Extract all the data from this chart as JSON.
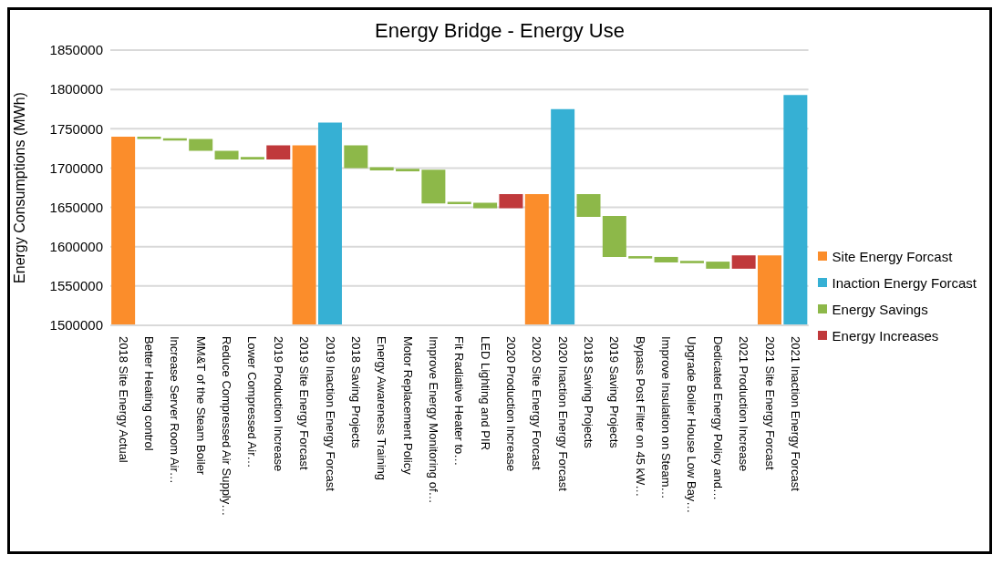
{
  "chart_data": {
    "type": "bar",
    "title": "Energy Bridge - Energy Use",
    "ylabel": "Energy Consumptions (MWh)",
    "categories": [
      "2018 Site Energy  Actual",
      "Better Heating control",
      "Increase Server Room Air…",
      "MM&T of the Steam Boiler",
      "Reduce Compressed Air Supply…",
      "Lower Compressed Air…",
      "2019 Production Increase",
      "2019 Site Energy Forcast",
      "2019 Inaction Energy Forcast",
      "2018 Saving Projects",
      "Energy Awareness Training",
      "Motor Replacement Policy",
      "Improve Energy Monitoring of…",
      "Fit Radiative Heater to…",
      "LED Lighting and PIR",
      "2020 Production Increase",
      "2020 Site Energy Forcast",
      "2020 Inaction Energy Forcast",
      "2018 Saving Projects",
      "2019 Saving Projects",
      "Bypass Post Filter on 45 kW…",
      "Improve Insulation on Steam…",
      "Upgrade Boiler House Low Bay…",
      "Dedicated Energy Policy and…",
      "2021 Production Increase",
      "2021 Site Energy Forcast",
      "2021 Inaction Energy Forcast"
    ],
    "series": [
      {
        "name": "Site Energy Forcast",
        "color": "#fb8d2b",
        "values": [
          1740000,
          null,
          null,
          null,
          null,
          null,
          null,
          1729000,
          null,
          null,
          null,
          null,
          null,
          null,
          null,
          null,
          1667000,
          null,
          null,
          null,
          null,
          null,
          null,
          null,
          null,
          1589000,
          null
        ]
      },
      {
        "name": "Inaction Energy Forcast",
        "color": "#36b0d4",
        "values": [
          null,
          null,
          null,
          null,
          null,
          null,
          null,
          null,
          1758000,
          null,
          null,
          null,
          null,
          null,
          null,
          null,
          null,
          1775000,
          null,
          null,
          null,
          null,
          null,
          null,
          null,
          null,
          1793000
        ]
      },
      {
        "name": "Energy Savings",
        "color": "#8db849",
        "base": [
          null,
          1740000,
          1738000,
          1737000,
          1722000,
          1714000,
          null,
          null,
          null,
          1729000,
          1701000,
          1699000,
          1698000,
          1657000,
          1656000,
          null,
          null,
          null,
          1667000,
          1639000,
          1588000,
          1587000,
          1582000,
          1581000,
          null,
          null,
          null
        ],
        "values": [
          null,
          -3000,
          -3000,
          -15000,
          -11000,
          -3000,
          null,
          null,
          null,
          -29000,
          -4000,
          -3000,
          -43000,
          -3000,
          -7000,
          null,
          null,
          null,
          -29000,
          -52000,
          -3000,
          -7000,
          -3000,
          -9000,
          null,
          null,
          null
        ]
      },
      {
        "name": "Energy Increases",
        "color": "#c0393b",
        "base": [
          null,
          null,
          null,
          null,
          null,
          null,
          1711000,
          null,
          null,
          null,
          null,
          null,
          null,
          null,
          null,
          1649000,
          null,
          null,
          null,
          null,
          null,
          null,
          null,
          null,
          1572000,
          null,
          null
        ],
        "values": [
          null,
          null,
          null,
          null,
          null,
          null,
          18000,
          null,
          null,
          null,
          null,
          null,
          null,
          null,
          null,
          18000,
          null,
          null,
          null,
          null,
          null,
          null,
          null,
          null,
          17000,
          null,
          null
        ]
      }
    ],
    "ylim": [
      1500000,
      1850000
    ],
    "yticks": [
      1500000,
      1550000,
      1600000,
      1650000,
      1700000,
      1750000,
      1800000,
      1850000
    ],
    "grid": "y",
    "legend": "right"
  }
}
